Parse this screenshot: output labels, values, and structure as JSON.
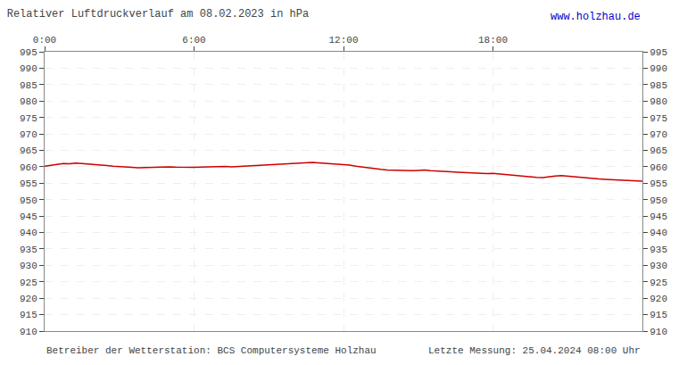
{
  "chart_data": {
    "type": "line",
    "title": "Relativer Luftdruckverlauf am 08.02.2023 in hPa",
    "annotations": [
      {
        "text": "www.holzhau.de",
        "color": "#0000cc"
      },
      {
        "text": "Betreiber der Wetterstation: BCS Computersysteme Holzhau"
      },
      {
        "text": "Letzte Messung: 25.04.2024 08:00 Uhr"
      }
    ],
    "color": "#cc0000",
    "grid": true,
    "xlim": [
      0,
      1440
    ],
    "xticks": [
      {
        "value": 0,
        "label": "0:00"
      },
      {
        "value": 360,
        "label": "6:00"
      },
      {
        "value": 720,
        "label": "12:00"
      },
      {
        "value": 1080,
        "label": "18:00"
      }
    ],
    "ylim": [
      910,
      995
    ],
    "yticks": [
      910,
      915,
      920,
      925,
      930,
      935,
      940,
      945,
      950,
      955,
      960,
      965,
      970,
      975,
      980,
      985,
      990,
      995
    ],
    "y2lim": [
      910,
      995
    ],
    "y2ticks": [
      910,
      915,
      920,
      925,
      930,
      935,
      940,
      945,
      950,
      955,
      960,
      965,
      970,
      975,
      980,
      985,
      990,
      995
    ],
    "x": [
      0,
      15,
      30,
      45,
      60,
      75,
      90,
      105,
      120,
      135,
      150,
      165,
      180,
      195,
      210,
      225,
      240,
      255,
      270,
      285,
      300,
      315,
      330,
      345,
      360,
      375,
      390,
      405,
      420,
      435,
      450,
      465,
      480,
      495,
      510,
      525,
      540,
      555,
      570,
      585,
      600,
      615,
      630,
      645,
      660,
      675,
      690,
      705,
      720,
      735,
      750,
      765,
      780,
      795,
      810,
      825,
      840,
      855,
      870,
      885,
      900,
      915,
      930,
      945,
      960,
      975,
      990,
      1005,
      1020,
      1035,
      1050,
      1065,
      1080,
      1095,
      1110,
      1125,
      1140,
      1155,
      1170,
      1185,
      1200,
      1215,
      1230,
      1245,
      1260,
      1275,
      1290,
      1305,
      1320,
      1335,
      1350,
      1365,
      1380,
      1395,
      1410,
      1425,
      1440
    ],
    "values": [
      960.2,
      960.4,
      960.8,
      961.0,
      960.9,
      961.1,
      961.0,
      960.8,
      960.7,
      960.5,
      960.4,
      960.2,
      960.0,
      959.9,
      959.8,
      959.7,
      959.8,
      959.9,
      960.0,
      960.1,
      960.0,
      959.9,
      959.8,
      959.7,
      959.8,
      959.9,
      960.0,
      960.1,
      960.2,
      960.1,
      960.0,
      960.1,
      960.2,
      960.3,
      960.4,
      960.5,
      960.6,
      960.7,
      960.8,
      960.9,
      961.0,
      961.1,
      961.2,
      961.3,
      961.2,
      961.1,
      961.0,
      960.9,
      960.8,
      960.5,
      960.2,
      959.9,
      959.6,
      959.4,
      959.2,
      959.0,
      958.9,
      958.8,
      958.7,
      958.8,
      958.9,
      959.0,
      958.8,
      958.7,
      958.5,
      958.3,
      958.2,
      958.1,
      958.0,
      957.9,
      957.8,
      957.9,
      958.0,
      957.8,
      957.6,
      957.4,
      957.2,
      957.1,
      956.9,
      956.8,
      956.7,
      957.0,
      957.2,
      957.3,
      957.1,
      956.9,
      956.7,
      956.5,
      956.4,
      956.3,
      956.2,
      956.1,
      956.0,
      955.9,
      955.8,
      955.7,
      955.6
    ]
  }
}
